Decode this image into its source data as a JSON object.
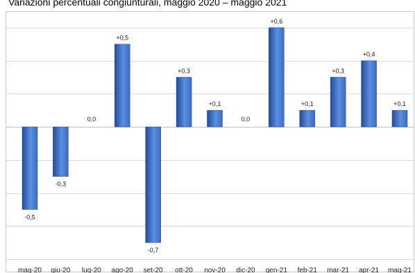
{
  "title": "Variazioni percentuali congiunturali, maggio 2020 – maggio 2021",
  "chart_data": {
    "type": "bar",
    "categories": [
      "mag-20",
      "giu-20",
      "lug-20",
      "ago-20",
      "set-20",
      "ott-20",
      "nov-20",
      "dic-20",
      "gen-21",
      "feb-21",
      "mar-21",
      "apr-21",
      "mag-21"
    ],
    "values": [
      -0.5,
      -0.3,
      0.0,
      0.5,
      -0.7,
      0.3,
      0.1,
      0.0,
      0.6,
      0.1,
      0.3,
      0.4,
      0.1
    ],
    "data_labels": [
      "-0,5",
      "-0,3",
      "0,0",
      "+0,5",
      "-0,7",
      "+0,3",
      "+0,1",
      "0,0",
      "+0,6",
      "+0,1",
      "+0,3",
      "+0,4",
      "+0,1"
    ],
    "ylim": [
      -0.8,
      0.7
    ],
    "grid": true,
    "legend": "none",
    "bar_color": "#3a6cc2",
    "bar_color_light": "#5b8fe0",
    "bar_color_dark": "#244a9a"
  }
}
